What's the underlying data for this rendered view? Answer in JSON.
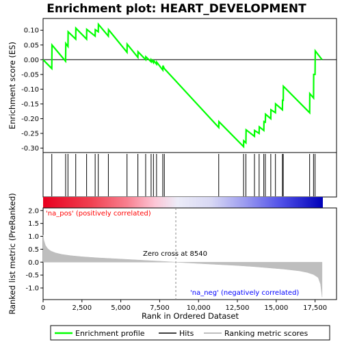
{
  "chart_data": {
    "type": "line",
    "title": "Enrichment plot: HEART_DEVELOPMENT",
    "xlabel": "Rank in Ordered Dataset",
    "xlim": [
      0,
      18000
    ],
    "xticks": [
      0,
      2500,
      5000,
      7500,
      10000,
      12500,
      15000,
      17500
    ],
    "xtick_labels": [
      "0",
      "2,500",
      "5,000",
      "7,500",
      "10,000",
      "12,500",
      "15,000",
      "17,500"
    ],
    "es_panel": {
      "ylabel": "Enrichment score (ES)",
      "ylim": [
        -0.315,
        0.14
      ],
      "yticks": [
        0.1,
        0.05,
        0.0,
        -0.05,
        -0.1,
        -0.15,
        -0.2,
        -0.25,
        -0.3
      ],
      "ytick_labels": [
        "0.10",
        "0.05",
        "0.00",
        "-0.05",
        "-0.10",
        "-0.15",
        "-0.20",
        "-0.25",
        "-0.30"
      ],
      "series": [
        {
          "name": "Enrichment profile",
          "color": "#00ff00",
          "x": [
            0,
            560,
            570,
            1450,
            1460,
            1600,
            1610,
            2100,
            2110,
            2800,
            2810,
            3350,
            3360,
            3550,
            3560,
            4200,
            4210,
            5400,
            5410,
            6100,
            6110,
            6600,
            6610,
            6950,
            6960,
            7100,
            7110,
            7300,
            7310,
            7700,
            7710,
            7800,
            11300,
            11310,
            12900,
            12910,
            13050,
            13060,
            13600,
            13610,
            13900,
            13910,
            14200,
            14210,
            14300,
            14310,
            14650,
            14660,
            14950,
            14960,
            15400,
            15410,
            15450,
            15460,
            17150,
            17160,
            17400,
            17410,
            17500,
            17510,
            17950
          ],
          "y": [
            0.0,
            -0.03,
            0.05,
            -0.005,
            0.055,
            0.045,
            0.095,
            0.07,
            0.107,
            0.07,
            0.103,
            0.08,
            0.102,
            0.095,
            0.12,
            0.08,
            0.102,
            0.025,
            0.053,
            0.008,
            0.027,
            0.0,
            0.01,
            -0.007,
            0.0,
            -0.01,
            -0.003,
            -0.015,
            -0.008,
            -0.035,
            -0.02,
            -0.03,
            -0.23,
            -0.21,
            -0.295,
            -0.275,
            -0.282,
            -0.238,
            -0.26,
            -0.24,
            -0.25,
            -0.228,
            -0.24,
            -0.21,
            -0.212,
            -0.185,
            -0.2,
            -0.17,
            -0.18,
            -0.15,
            -0.17,
            -0.135,
            -0.14,
            -0.09,
            -0.18,
            -0.115,
            -0.13,
            -0.05,
            -0.05,
            0.03,
            0.0
          ]
        }
      ]
    },
    "hits": {
      "name": "Hits",
      "x": [
        560,
        1450,
        1600,
        2100,
        2800,
        3350,
        3550,
        4200,
        5400,
        6100,
        6600,
        6950,
        7100,
        7300,
        7700,
        7800,
        11300,
        12900,
        13050,
        13600,
        13900,
        14200,
        14300,
        14650,
        14950,
        15400,
        15450,
        17150,
        17400,
        17500
      ]
    },
    "ranking_panel": {
      "ylabel": "Ranked list metric (PreRanked)",
      "ylim": [
        -1.45,
        2.1
      ],
      "yticks": [
        2.0,
        1.5,
        1.0,
        0.5,
        0.0,
        -0.5,
        -1.0
      ],
      "ytick_labels": [
        "2.0",
        "1.5",
        "1.0",
        "0.5",
        "0.0",
        "-0.5",
        "-1.0"
      ],
      "series": [
        {
          "name": "Ranking metric scores",
          "color": "#bebebe",
          "x": [
            0,
            50,
            150,
            300,
            500,
            800,
            1200,
            1800,
            2500,
            3500,
            5000,
            6500,
            8000,
            8540,
            10000,
            11500,
            12500,
            13500,
            14500,
            15500,
            16500,
            17000,
            17400,
            17700,
            17850,
            17950
          ],
          "y": [
            1.05,
            0.85,
            0.65,
            0.52,
            0.43,
            0.36,
            0.3,
            0.25,
            0.21,
            0.17,
            0.12,
            0.07,
            0.02,
            0.0,
            -0.05,
            -0.1,
            -0.13,
            -0.17,
            -0.22,
            -0.27,
            -0.34,
            -0.4,
            -0.48,
            -0.6,
            -0.85,
            -1.35
          ]
        }
      ],
      "zero_cross_label": "Zero cross at 8540",
      "zero_cross_x": 8540,
      "pos_label": "'na_pos' (positively correlated)",
      "neg_label": "'na_neg' (negatively correlated)",
      "pos_color": "#ff0000",
      "neg_color": "#0000ff"
    },
    "legend": {
      "placement": "bottom",
      "items": [
        {
          "label": "Enrichment profile",
          "color": "#00ff00"
        },
        {
          "label": "Hits",
          "color": "#000000"
        },
        {
          "label": "Ranking metric scores",
          "color": "#bebebe"
        }
      ]
    }
  }
}
